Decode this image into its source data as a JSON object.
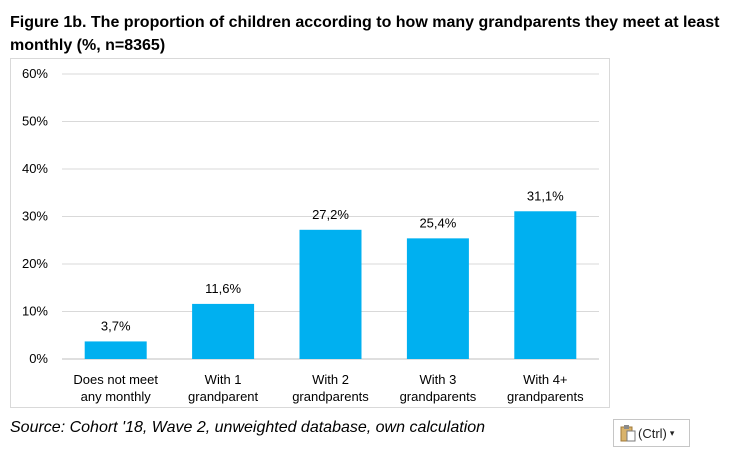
{
  "figure_title": "Figure 1b. The proportion of children according to how many grandparents they meet at least monthly (%, n=8365)",
  "source_note": "Source: Cohort '18, Wave 2, unweighted database, own calculation",
  "paste_options": {
    "label": "(Ctrl)",
    "icon": "clipboard-icon",
    "caret": "▾"
  },
  "chart_data": {
    "type": "bar",
    "title": "",
    "xlabel": "",
    "ylabel": "",
    "categories": [
      [
        "Does not meet",
        "any monthly"
      ],
      [
        "With 1",
        "grandparent"
      ],
      [
        "With 2",
        "grandparents"
      ],
      [
        "With 3",
        "grandparents"
      ],
      [
        "With 4+",
        "grandparents"
      ]
    ],
    "values": [
      3.7,
      11.6,
      27.2,
      25.4,
      31.1
    ],
    "data_labels": [
      "3,7%",
      "11,6%",
      "27,2%",
      "25,4%",
      "31,1%"
    ],
    "ylim": [
      0,
      60
    ],
    "yticks": [
      0,
      10,
      20,
      30,
      40,
      50,
      60
    ],
    "ytick_labels": [
      "0%",
      "10%",
      "20%",
      "30%",
      "40%",
      "50%",
      "60%"
    ],
    "grid": true,
    "legend": "none",
    "bar_color": "#00b0f0",
    "grid_color": "#d9d9d9"
  }
}
